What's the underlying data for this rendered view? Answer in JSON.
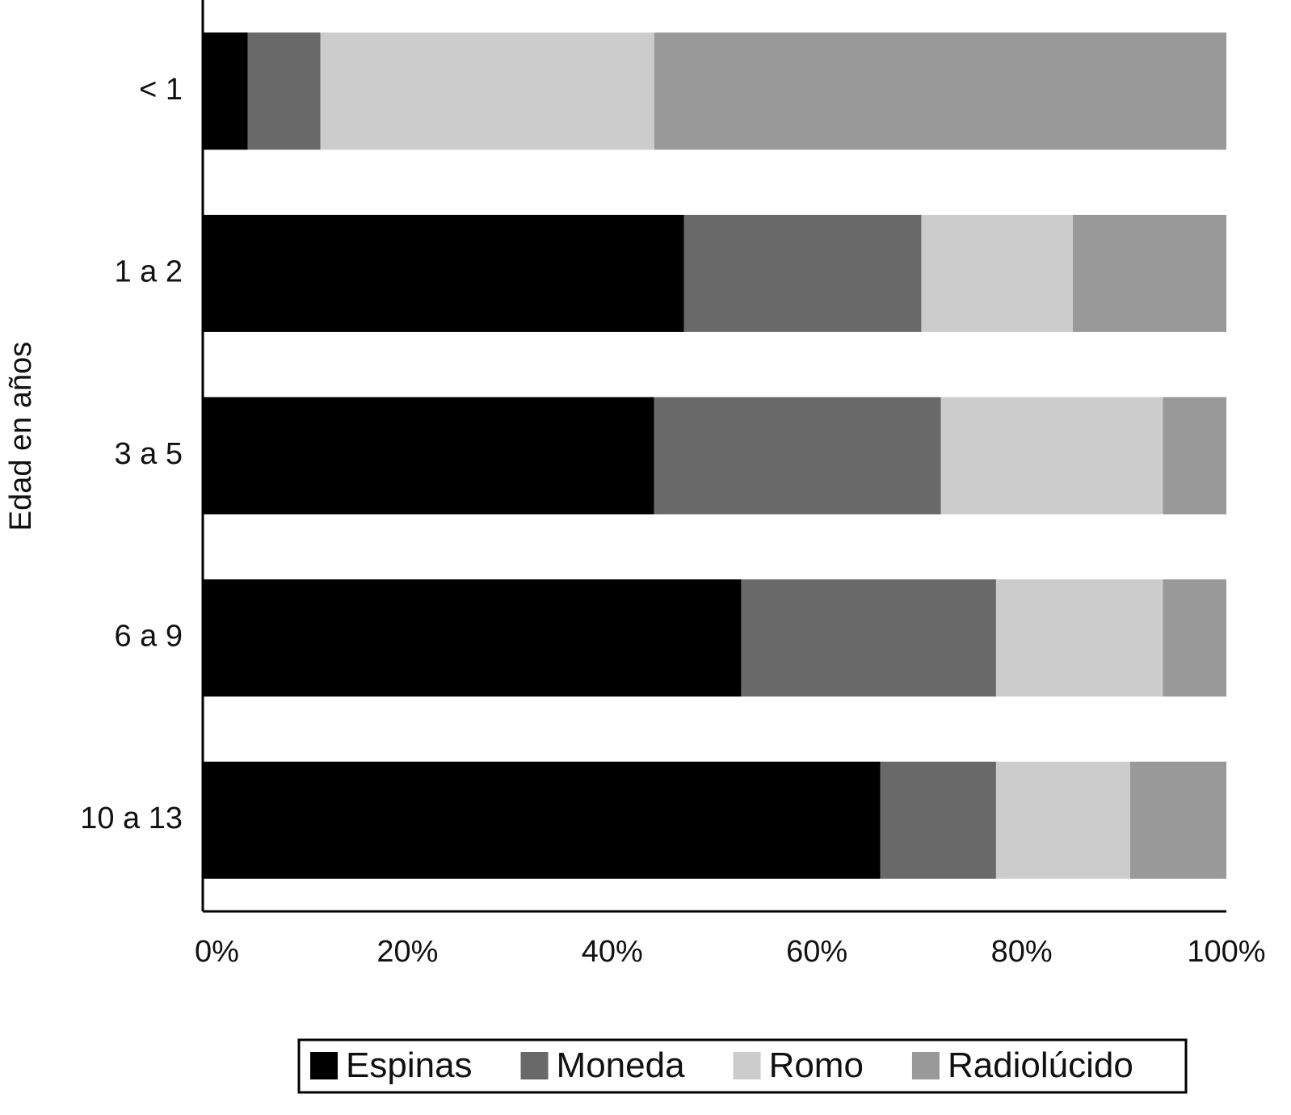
{
  "chart_data": {
    "type": "bar",
    "orientation": "horizontal",
    "stacked": true,
    "y_label": "Edad en años",
    "categories": [
      "< 1",
      "1 a 2",
      "3 a 5",
      "6 a 9",
      "10 a 13"
    ],
    "series": [
      {
        "name": "Espinas",
        "color": "#000000",
        "values": [
          4.4,
          47.0,
          44.1,
          52.6,
          66.2
        ]
      },
      {
        "name": "Moneda",
        "color": "#696969",
        "values": [
          7.1,
          23.2,
          28.0,
          24.9,
          11.3
        ]
      },
      {
        "name": "Romo",
        "color": "#cccccc",
        "values": [
          32.6,
          14.8,
          21.7,
          16.3,
          13.1
        ]
      },
      {
        "name": "Radiolúcido",
        "color": "#999999",
        "values": [
          55.9,
          15.0,
          6.2,
          6.2,
          9.4
        ]
      }
    ],
    "xlim": [
      0,
      100
    ],
    "xticks": [
      {
        "value": 0,
        "label": "0%"
      },
      {
        "value": 20,
        "label": "20%"
      },
      {
        "value": 40,
        "label": "40%"
      },
      {
        "value": 60,
        "label": "60%"
      },
      {
        "value": 80,
        "label": "80%"
      },
      {
        "value": 100,
        "label": "100%"
      }
    ],
    "grid": false,
    "legend": "bottom"
  }
}
